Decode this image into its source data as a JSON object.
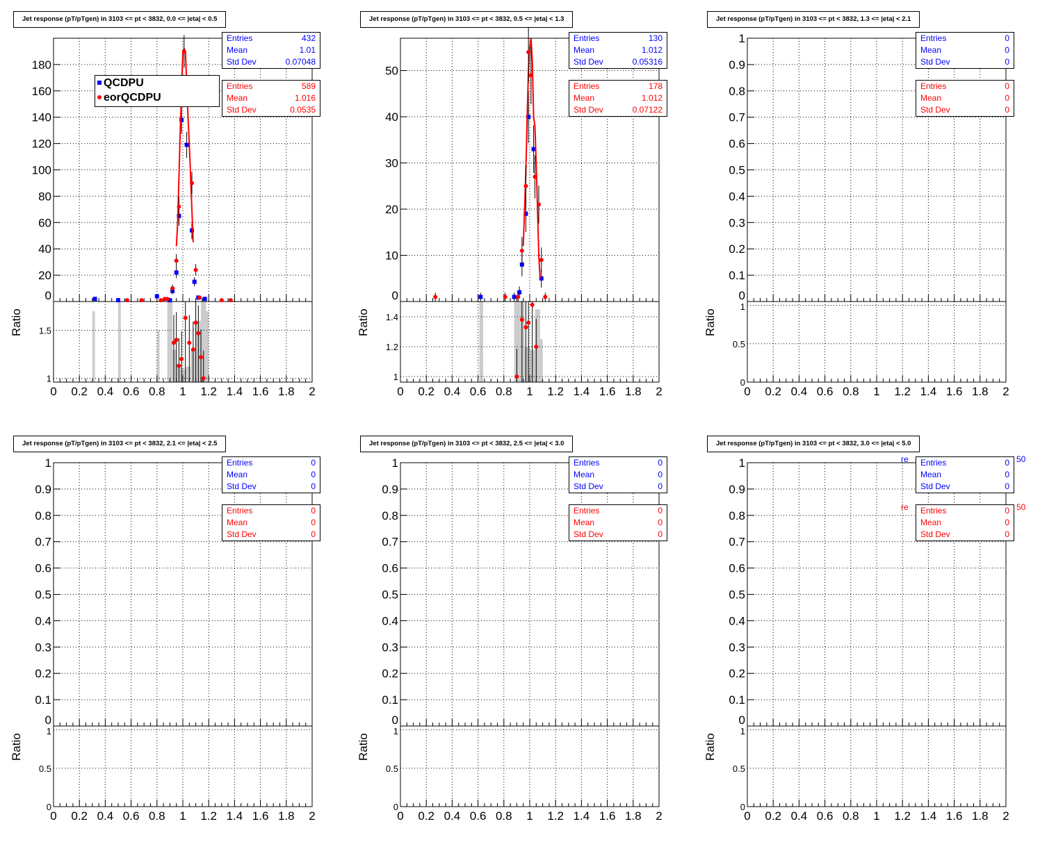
{
  "colors": {
    "series1": "#0000ff",
    "series2": "#ff0000",
    "ratio_band": "#cccccc"
  },
  "legend": [
    "QCDPU",
    "eorQCDPU"
  ],
  "stats_labels": [
    "Entries",
    "Mean",
    "Std Dev"
  ],
  "chart_data": [
    {
      "type": "scatter",
      "title": "Jet response (pT/pTgen) in 3103 <= pt < 3832, 0.0 <= |eta| < 0.5",
      "xlim": [
        0,
        2
      ],
      "ylim": [
        0,
        200
      ],
      "yticks": [
        0,
        20,
        40,
        60,
        80,
        100,
        120,
        140,
        160,
        180
      ],
      "ratio_ylim": [
        0.96,
        1.8
      ],
      "ratio_yticks": [
        "1",
        "1.5"
      ],
      "ratio_ytick_values": [
        1,
        1.5
      ],
      "ylabel_ratio": "Ratio",
      "stats": [
        {
          "entries": "432",
          "mean": "1.01",
          "std": "0.07048"
        },
        {
          "entries": "589",
          "mean": "1.016",
          "std": "0.0535"
        }
      ],
      "series": [
        {
          "name": "QCDPU",
          "points": [
            [
              0.32,
              2
            ],
            [
              0.5,
              1
            ],
            [
              0.8,
              4
            ],
            [
              0.9,
              1
            ],
            [
              0.92,
              8
            ],
            [
              0.95,
              22
            ],
            [
              0.97,
              65
            ],
            [
              0.99,
              138
            ],
            [
              1.03,
              119
            ],
            [
              1.07,
              54
            ],
            [
              1.09,
              15
            ],
            [
              1.12,
              3
            ],
            [
              1.17,
              2
            ]
          ]
        },
        {
          "name": "eorQCDPU",
          "points": [
            [
              0.57,
              1
            ],
            [
              0.68,
              1
            ],
            [
              0.83,
              1
            ],
            [
              0.86,
              2
            ],
            [
              0.88,
              2
            ],
            [
              0.92,
              10
            ],
            [
              0.95,
              31
            ],
            [
              0.97,
              72
            ],
            [
              1.01,
              190
            ],
            [
              1.07,
              90
            ],
            [
              1.1,
              24
            ],
            [
              1.13,
              3
            ],
            [
              1.3,
              1
            ],
            [
              1.37,
              1
            ]
          ],
          "curve": [
            [
              0.95,
              42
            ],
            [
              0.96,
              60
            ],
            [
              0.97,
              95
            ],
            [
              0.98,
              130
            ],
            [
              0.99,
              160
            ],
            [
              1.0,
              190
            ],
            [
              1.01,
              192
            ],
            [
              1.02,
              190
            ],
            [
              1.03,
              165
            ],
            [
              1.04,
              140
            ],
            [
              1.05,
              120
            ],
            [
              1.06,
              95
            ],
            [
              1.07,
              70
            ],
            [
              1.08,
              45
            ]
          ]
        }
      ],
      "ratio_band": [
        [
          0.3,
          0.32,
          1.7
        ],
        [
          0.5,
          0.52,
          1.8
        ],
        [
          0.8,
          0.82,
          1.5
        ],
        [
          0.88,
          0.92,
          1.8
        ],
        [
          0.92,
          0.95,
          1.3
        ],
        [
          0.95,
          0.98,
          1.15
        ],
        [
          0.98,
          1.02,
          1.1
        ],
        [
          1.02,
          1.06,
          1.12
        ],
        [
          1.06,
          1.1,
          1.3
        ],
        [
          1.1,
          1.14,
          1.6
        ],
        [
          1.14,
          1.18,
          1.8
        ],
        [
          1.18,
          1.2,
          1.7
        ]
      ],
      "ratio_points": [
        [
          0.93,
          1.37
        ],
        [
          0.95,
          1.4
        ],
        [
          0.97,
          1.13
        ],
        [
          0.99,
          1.2
        ],
        [
          1.02,
          1.63
        ],
        [
          1.05,
          1.37
        ],
        [
          1.08,
          1.3
        ],
        [
          1.1,
          1.58
        ],
        [
          1.12,
          1.47
        ],
        [
          1.14,
          1.22
        ],
        [
          1.16,
          1.0
        ]
      ]
    },
    {
      "type": "scatter",
      "title": "Jet response (pT/pTgen) in 3103 <= pt < 3832, 0.5 <= |eta| < 1.3",
      "xlim": [
        0,
        2
      ],
      "ylim": [
        0,
        57
      ],
      "yticks": [
        0,
        10,
        20,
        30,
        40,
        50
      ],
      "ratio_ylim": [
        0.963,
        1.502
      ],
      "ratio_yticks": [
        "1",
        "1.2",
        "1.4"
      ],
      "ratio_ytick_values": [
        1,
        1.2,
        1.4
      ],
      "ylabel_ratio": "Ratio",
      "stats": [
        {
          "entries": "130",
          "mean": "1.012",
          "std": "0.05316"
        },
        {
          "entries": "178",
          "mean": "1.012",
          "std": "0.07122"
        }
      ],
      "series": [
        {
          "name": "QCDPU",
          "points": [
            [
              0.62,
              1
            ],
            [
              0.88,
              1
            ],
            [
              0.92,
              2
            ],
            [
              0.94,
              8
            ],
            [
              0.97,
              19
            ],
            [
              0.99,
              40
            ],
            [
              1.03,
              33
            ],
            [
              1.09,
              5
            ]
          ]
        },
        {
          "name": "eorQCDPU",
          "points": [
            [
              0.27,
              1
            ],
            [
              0.81,
              1
            ],
            [
              0.91,
              1
            ],
            [
              0.94,
              11
            ],
            [
              0.97,
              25
            ],
            [
              0.99,
              54
            ],
            [
              1.01,
              49
            ],
            [
              1.04,
              27
            ],
            [
              1.07,
              21
            ],
            [
              1.09,
              9
            ],
            [
              1.12,
              1
            ]
          ],
          "curve": [
            [
              0.95,
              12
            ],
            [
              0.96,
              20
            ],
            [
              0.97,
              28
            ],
            [
              0.98,
              40
            ],
            [
              0.99,
              50
            ],
            [
              1.0,
              55
            ],
            [
              1.01,
              57
            ],
            [
              1.02,
              52
            ],
            [
              1.03,
              40
            ],
            [
              1.04,
              38
            ],
            [
              1.05,
              30
            ],
            [
              1.06,
              20
            ],
            [
              1.07,
              10
            ],
            [
              1.08,
              5
            ]
          ]
        }
      ],
      "ratio_band": [
        [
          0.61,
          0.64,
          1.5
        ],
        [
          0.88,
          0.92,
          1.5
        ],
        [
          0.92,
          0.96,
          1.5
        ],
        [
          0.96,
          1.0,
          1.2
        ],
        [
          1.0,
          1.04,
          1.18
        ],
        [
          1.04,
          1.08,
          1.45
        ],
        [
          1.08,
          1.1,
          1.25
        ]
      ],
      "ratio_points": [
        [
          0.9,
          1.0
        ],
        [
          0.94,
          1.38
        ],
        [
          0.97,
          1.33
        ],
        [
          0.99,
          1.36
        ],
        [
          1.02,
          1.48
        ],
        [
          1.05,
          1.2
        ]
      ]
    },
    {
      "type": "scatter",
      "title": "Jet response (pT/pTgen) in 3103 <= pt < 3832, 1.3 <= |eta| < 2.1",
      "xlim": [
        0,
        2
      ],
      "ylim": [
        0,
        1
      ],
      "ylabel_ratio": "Ratio",
      "stats": [
        {
          "entries": "0",
          "mean": "0",
          "std": "0"
        },
        {
          "entries": "0",
          "mean": "0",
          "std": "0"
        }
      ]
    },
    {
      "type": "scatter",
      "title": "Jet response (pT/pTgen) in 3103 <= pt < 3832, 2.1 <= |eta| < 2.5",
      "xlim": [
        0,
        2
      ],
      "ylim": [
        0,
        1
      ],
      "ylabel_ratio": "Ratio",
      "stats": [
        {
          "entries": "0",
          "mean": "0",
          "std": "0"
        },
        {
          "entries": "0",
          "mean": "0",
          "std": "0"
        }
      ]
    },
    {
      "type": "scatter",
      "title": "Jet response (pT/pTgen) in 3103 <= pt < 3832, 2.5 <= |eta| < 3.0",
      "xlim": [
        0,
        2
      ],
      "ylim": [
        0,
        1
      ],
      "ylabel_ratio": "Ratio",
      "stats": [
        {
          "entries": "0",
          "mean": "0",
          "std": "0"
        },
        {
          "entries": "0",
          "mean": "0",
          "std": "0"
        }
      ]
    },
    {
      "type": "scatter",
      "title": "Jet response (pT/pTgen) in 3103 <= pt < 3832, 3.0 <= |eta| < 5.0",
      "xlim": [
        0,
        2
      ],
      "ylim": [
        0,
        1
      ],
      "ylabel_ratio": "Ratio",
      "stats": [
        {
          "entries": "0",
          "mean": "0",
          "std": "0"
        },
        {
          "entries": "0",
          "mean": "0",
          "std": "0"
        }
      ],
      "hidden_text": [
        "re",
        "50"
      ]
    }
  ]
}
